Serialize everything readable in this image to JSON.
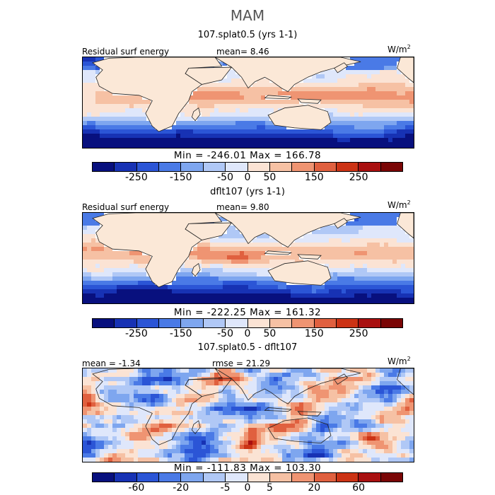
{
  "title": "MAM",
  "units_label": "W/m",
  "units_sup": "2",
  "colors": {
    "ramp": [
      "#08107e",
      "#1732b4",
      "#2b55d6",
      "#4a7ae6",
      "#7ea6ef",
      "#b0c8f6",
      "#dfe7fb",
      "#fbe3d4",
      "#f6c1a4",
      "#ef9472",
      "#e0603f",
      "#cc3315",
      "#a91010",
      "#7a0606"
    ],
    "land": "#fbe8d7",
    "coast": "#222222"
  },
  "panels": [
    {
      "title": "107.splat0.5 (yrs 1-1)",
      "left_label": "Residual surf energy",
      "center_label": "mean=   8.46",
      "minmax": "Min = -246.01 Max = 166.78",
      "tick_labels": [
        "-250",
        "-150",
        "-50",
        "0",
        "50",
        "150",
        "250"
      ],
      "kind": "field"
    },
    {
      "title": "dflt107 (yrs 1-1)",
      "left_label": "Residual surf energy",
      "center_label": "mean=   9.80",
      "minmax": "Min = -222.25 Max = 161.32",
      "tick_labels": [
        "-250",
        "-150",
        "-50",
        "0",
        "50",
        "150",
        "250"
      ],
      "kind": "field"
    },
    {
      "title": "107.splat0.5 - dflt107",
      "left_label": "mean =   -1.34",
      "center_label": "rmse =   21.29",
      "minmax": "Min = -111.83 Max = 103.30",
      "tick_labels": [
        "-60",
        "-20",
        "-5",
        "0",
        "5",
        "20",
        "60"
      ],
      "kind": "diff"
    }
  ],
  "chart_data": [
    {
      "type": "heatmap",
      "title": "107.splat0.5 (yrs 1-1)",
      "variable": "Residual surf energy",
      "units": "W/m2",
      "mean": 8.46,
      "min": -246.01,
      "max": 166.78,
      "contour_levels": [
        -300,
        -250,
        -200,
        -150,
        -100,
        -50,
        -25,
        0,
        25,
        50,
        100,
        150,
        200,
        250,
        300
      ],
      "colorbar_ticks": [
        -250,
        -150,
        -50,
        0,
        50,
        150,
        250
      ]
    },
    {
      "type": "heatmap",
      "title": "dflt107 (yrs 1-1)",
      "variable": "Residual surf energy",
      "units": "W/m2",
      "mean": 9.8,
      "min": -222.25,
      "max": 161.32,
      "contour_levels": [
        -300,
        -250,
        -200,
        -150,
        -100,
        -50,
        -25,
        0,
        25,
        50,
        100,
        150,
        200,
        250,
        300
      ],
      "colorbar_ticks": [
        -250,
        -150,
        -50,
        0,
        50,
        150,
        250
      ]
    },
    {
      "type": "heatmap",
      "title": "107.splat0.5 - dflt107",
      "units": "W/m2",
      "mean": -1.34,
      "rmse": 21.29,
      "min": -111.83,
      "max": 103.3,
      "contour_levels": [
        -80,
        -60,
        -40,
        -20,
        -10,
        -5,
        -2,
        0,
        2,
        5,
        10,
        20,
        40,
        60,
        80
      ],
      "colorbar_ticks": [
        -60,
        -20,
        -5,
        0,
        5,
        20,
        60
      ]
    }
  ]
}
